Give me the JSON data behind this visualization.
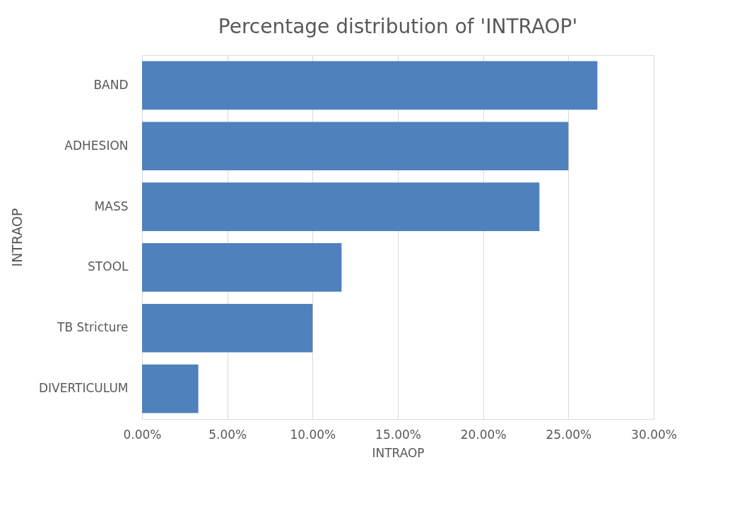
{
  "chart_data": {
    "type": "bar",
    "orientation": "horizontal",
    "title": "Percentage distribution  of 'INTRAOP'",
    "xlabel": "INTRAOP",
    "ylabel": "INTRAOP",
    "categories": [
      "BAND",
      "ADHESION",
      "MASS",
      "STOOL",
      "TB Stricture",
      "DIVERTICULUM"
    ],
    "values": [
      26.7,
      25.0,
      23.3,
      11.7,
      10.0,
      3.3
    ],
    "color": "#4f81bd",
    "xlim": [
      0,
      30
    ],
    "xticks": [
      {
        "value": 0,
        "label": "0.00%"
      },
      {
        "value": 5,
        "label": "5.00%"
      },
      {
        "value": 10,
        "label": "10.00%"
      },
      {
        "value": 15,
        "label": "15.00%"
      },
      {
        "value": 20,
        "label": "20.00%"
      },
      {
        "value": 25,
        "label": "25.00%"
      },
      {
        "value": 30,
        "label": "30.00%"
      }
    ],
    "grid": "x"
  }
}
